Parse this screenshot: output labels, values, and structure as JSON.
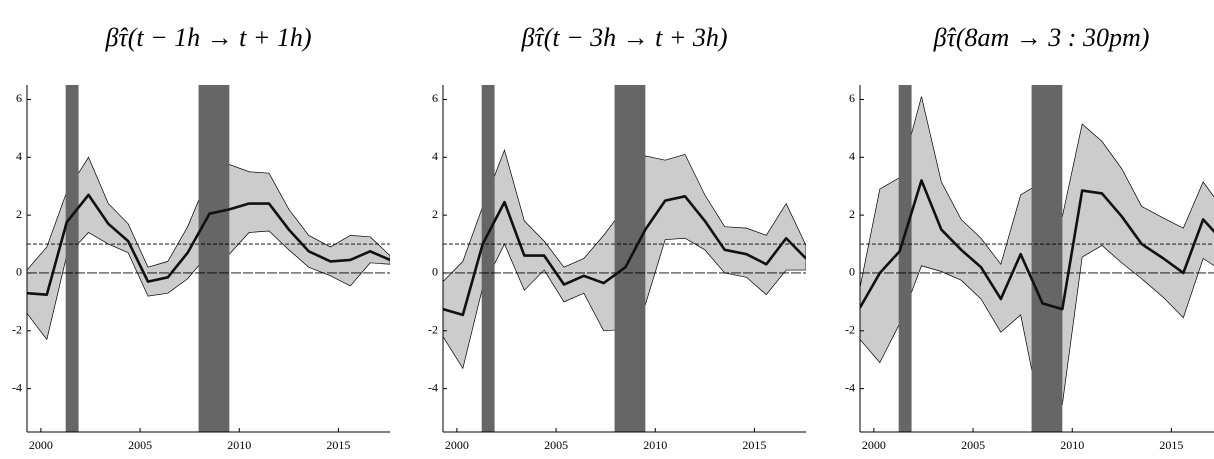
{
  "chart_data": [
    {
      "type": "line",
      "title": "β̂τ(t − 1h → t + 1h)",
      "x": [
        1999.3,
        2000.3,
        2001.3,
        2002.4,
        2003.4,
        2004.4,
        2005.4,
        2006.4,
        2007.4,
        2008.5,
        2009.5,
        2010.5,
        2011.5,
        2012.5,
        2013.5,
        2014.6,
        2015.6,
        2016.6,
        2017.6
      ],
      "values": [
        -0.7,
        -0.75,
        1.75,
        2.7,
        1.7,
        1.1,
        -0.3,
        -0.15,
        0.7,
        2.05,
        2.2,
        2.4,
        2.4,
        1.5,
        0.75,
        0.4,
        0.45,
        0.75,
        0.45
      ],
      "upper": [
        0.1,
        0.9,
        2.8,
        4.0,
        2.4,
        1.7,
        0.2,
        0.4,
        1.6,
        3.4,
        3.75,
        3.5,
        3.45,
        2.2,
        1.3,
        0.9,
        1.3,
        1.25,
        0.6
      ],
      "lower": [
        -1.4,
        -2.3,
        0.6,
        1.4,
        1.0,
        0.7,
        -0.8,
        -0.7,
        -0.2,
        0.7,
        0.65,
        1.4,
        1.45,
        0.8,
        0.2,
        -0.1,
        -0.45,
        0.35,
        0.3
      ],
      "color": "#111111",
      "band_color": "#cccccc",
      "shade_color": "#666666",
      "shaded": [
        [
          2001.25,
          2001.9
        ],
        [
          2007.95,
          2009.5
        ]
      ],
      "hlines": [
        0,
        1
      ],
      "xlim": [
        1999.3,
        2017.6
      ],
      "ylim": [
        -5.5,
        6.5
      ],
      "xticks": [
        2000,
        2005,
        2010,
        2015
      ],
      "yticks": [
        -4,
        -2,
        0,
        2,
        4,
        6
      ]
    },
    {
      "type": "line",
      "title": "β̂τ(t − 3h → t + 3h)",
      "x": [
        1999.3,
        2000.3,
        2001.3,
        2002.4,
        2003.4,
        2004.4,
        2005.4,
        2006.4,
        2007.4,
        2008.5,
        2009.5,
        2010.5,
        2011.5,
        2012.5,
        2013.5,
        2014.6,
        2015.6,
        2016.6,
        2017.6
      ],
      "values": [
        -1.25,
        -1.45,
        1.0,
        2.45,
        0.6,
        0.6,
        -0.4,
        -0.1,
        -0.35,
        0.2,
        1.5,
        2.5,
        2.65,
        1.8,
        0.8,
        0.65,
        0.3,
        1.2,
        0.5
      ],
      "upper": [
        -0.3,
        0.4,
        2.3,
        4.25,
        1.8,
        1.1,
        0.2,
        0.5,
        1.3,
        2.3,
        4.05,
        3.9,
        4.1,
        2.7,
        1.6,
        1.55,
        1.3,
        2.4,
        0.95
      ],
      "lower": [
        -2.2,
        -3.3,
        -0.5,
        1.0,
        -0.6,
        0.1,
        -1.0,
        -0.7,
        -2.0,
        -1.95,
        -1.1,
        1.15,
        1.2,
        0.8,
        0.0,
        -0.15,
        -0.75,
        0.1,
        0.1
      ],
      "color": "#111111",
      "band_color": "#cccccc",
      "shade_color": "#666666",
      "shaded": [
        [
          2001.25,
          2001.9
        ],
        [
          2007.95,
          2009.5
        ]
      ],
      "hlines": [
        0,
        1
      ],
      "xlim": [
        1999.3,
        2017.6
      ],
      "ylim": [
        -5.5,
        6.5
      ],
      "xticks": [
        2000,
        2005,
        2010,
        2015
      ],
      "yticks": [
        -4,
        -2,
        0,
        2,
        4,
        6
      ]
    },
    {
      "type": "line",
      "title": "β̂τ(8am → 3 : 30pm)",
      "x": [
        1999.3,
        2000.3,
        2001.3,
        2002.4,
        2003.4,
        2004.4,
        2005.4,
        2006.4,
        2007.4,
        2008.5,
        2009.5,
        2010.5,
        2011.5,
        2012.5,
        2013.5,
        2014.6,
        2015.6,
        2016.6,
        2017.6
      ],
      "values": [
        -1.2,
        0.0,
        0.75,
        3.2,
        1.5,
        0.8,
        0.2,
        -0.9,
        0.65,
        -1.05,
        -1.25,
        2.85,
        2.75,
        1.95,
        1.0,
        0.5,
        0.0,
        1.85,
        1.1
      ],
      "upper": [
        -0.5,
        2.9,
        3.3,
        6.1,
        3.15,
        1.85,
        1.2,
        0.3,
        2.7,
        3.15,
        1.95,
        5.15,
        4.55,
        3.6,
        2.3,
        1.9,
        1.55,
        3.15,
        2.2
      ],
      "lower": [
        -2.3,
        -3.1,
        -1.75,
        0.25,
        0.05,
        -0.25,
        -0.9,
        -2.05,
        -1.45,
        -5.2,
        -4.55,
        0.55,
        0.95,
        0.35,
        -0.2,
        -0.85,
        -1.55,
        0.5,
        0.05
      ],
      "color": "#111111",
      "band_color": "#cccccc",
      "shade_color": "#666666",
      "shaded": [
        [
          2001.25,
          2001.9
        ],
        [
          2007.95,
          2009.5
        ]
      ],
      "hlines": [
        0,
        1
      ],
      "xlim": [
        1999.3,
        2017.6
      ],
      "ylim": [
        -5.5,
        6.5
      ],
      "xticks": [
        2000,
        2005,
        2010,
        2015
      ],
      "yticks": [
        -4,
        -2,
        0,
        2,
        4,
        6
      ]
    }
  ]
}
